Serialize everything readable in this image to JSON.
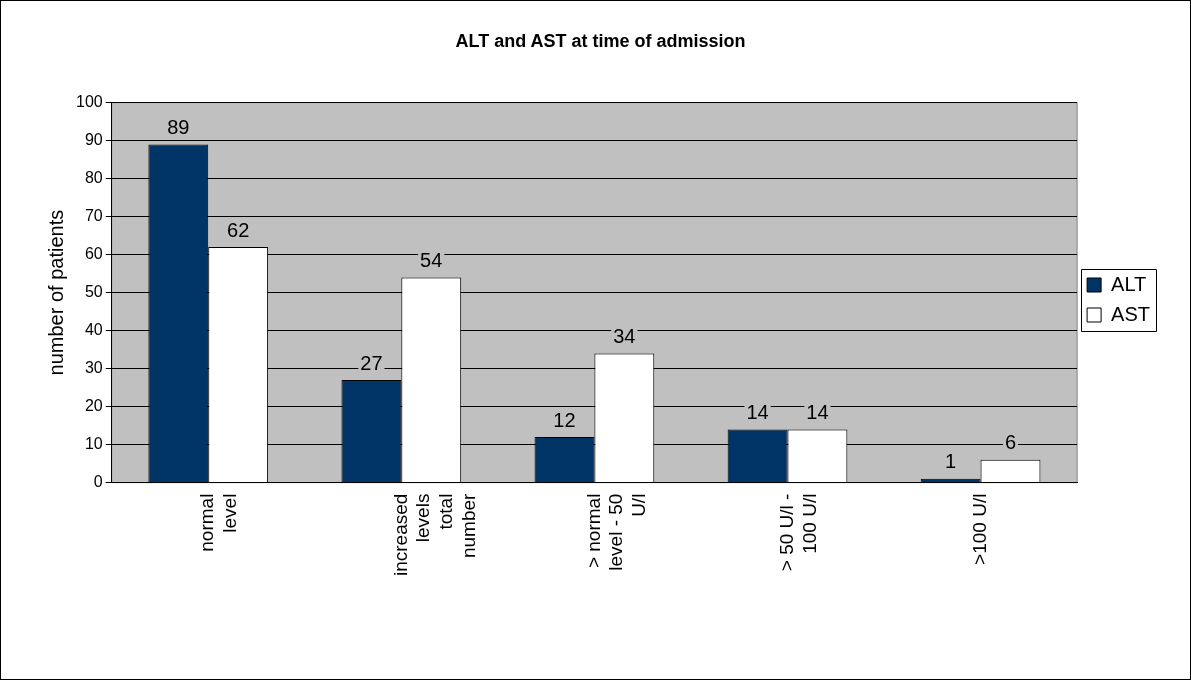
{
  "chart_data": {
    "type": "bar",
    "title": "ALT and AST at time of admission",
    "ylabel": "number of patients",
    "categories": [
      "normal level",
      "increased levels total number",
      "> normal level - 50 U/l",
      "> 50 U/l - 100 U/l",
      ">100 U/l"
    ],
    "series": [
      {
        "name": "ALT",
        "color": "#003366",
        "values": [
          89,
          27,
          12,
          14,
          1
        ]
      },
      {
        "name": "AST",
        "color": "#ffffff",
        "values": [
          62,
          54,
          34,
          14,
          6
        ]
      }
    ],
    "ylim": [
      0,
      100
    ],
    "yticks": [
      0,
      10,
      20,
      30,
      40,
      50,
      60,
      70,
      80,
      90,
      100
    ],
    "grid": "y",
    "legend": "right",
    "data_labels": true
  }
}
